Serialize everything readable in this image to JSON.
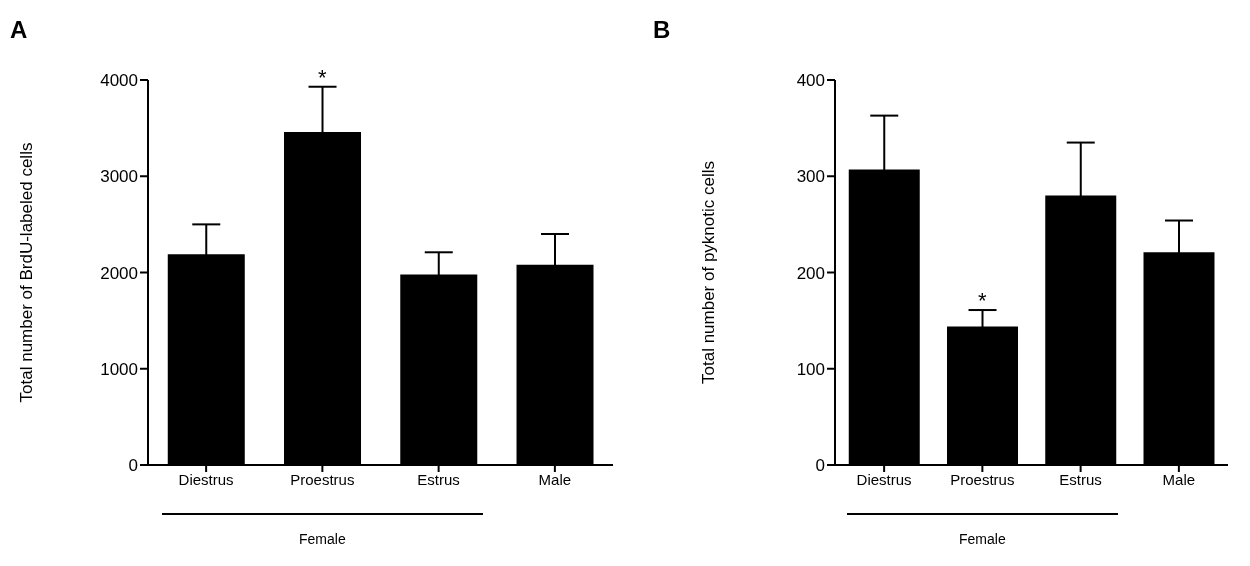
{
  "chart_data": [
    {
      "type": "bar",
      "title": "A",
      "ylabel": "Total number of BrdU-labeled cells",
      "categories": [
        "Diestrus",
        "Proestrus",
        "Estrus",
        "Male"
      ],
      "values": [
        2190,
        3460,
        1980,
        2080
      ],
      "errors": [
        310,
        470,
        230,
        320
      ],
      "color": "#000000",
      "ylim": [
        0,
        4000
      ],
      "yticks": [
        0,
        1000,
        2000,
        3000,
        4000
      ],
      "grid": false,
      "legend": false,
      "annotations": [
        {
          "text": "*",
          "x": "Proestrus",
          "y": 3930
        },
        "Female"
      ]
    },
    {
      "type": "bar",
      "title": "B",
      "ylabel": "Total number of pyknotic cells",
      "categories": [
        "Diestrus",
        "Proestrus",
        "Estrus",
        "Male"
      ],
      "values": [
        307,
        144,
        280,
        221
      ],
      "errors": [
        56,
        17,
        55,
        33
      ],
      "color": "#000000",
      "ylim": [
        0,
        400
      ],
      "yticks": [
        0,
        100,
        200,
        300,
        400
      ],
      "grid": false,
      "legend": false,
      "annotations": [
        {
          "text": "*",
          "x": "Proestrus",
          "y": 161
        },
        "Female"
      ]
    }
  ]
}
